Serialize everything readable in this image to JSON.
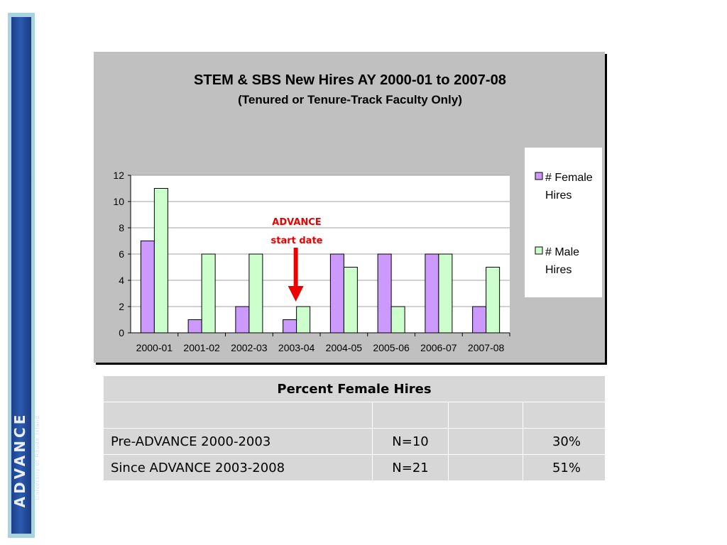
{
  "chart_data": {
    "type": "bar",
    "title": "STEM & SBS New Hires AY 2000-01 to 2007-08",
    "subtitle": "(Tenured or Tenure-Track Faculty Only)",
    "categories": [
      "2000-01",
      "2001-02",
      "2002-03",
      "2003-04",
      "2004-05",
      "2005-06",
      "2006-07",
      "2007-08"
    ],
    "series": [
      {
        "name": "# Female Hires",
        "values": [
          7,
          1,
          2,
          1,
          6,
          6,
          6,
          2
        ],
        "color": "#cc99ff"
      },
      {
        "name": "# Male Hires",
        "values": [
          11,
          6,
          6,
          2,
          5,
          2,
          6,
          5
        ],
        "color": "#ccffcc"
      }
    ],
    "ylim": [
      0,
      12
    ],
    "yticks": [
      0,
      2,
      4,
      6,
      8,
      10,
      12
    ],
    "grid": true,
    "legend": "right",
    "annotation": {
      "line1": "ADVANCE",
      "line2": "start date",
      "category": "2003-04",
      "color": "#ee0000"
    }
  },
  "table": {
    "title": "Percent Female Hires",
    "rows": [
      {
        "label": "Pre-ADVANCE 2000-2003",
        "n": "N=10",
        "pct": "30%"
      },
      {
        "label": "Since ADVANCE 2003-2008",
        "n": "N=21",
        "pct": "51%"
      }
    ]
  },
  "logo": {
    "text": "ADVANCE",
    "subtext": "University of Rhode Island"
  }
}
